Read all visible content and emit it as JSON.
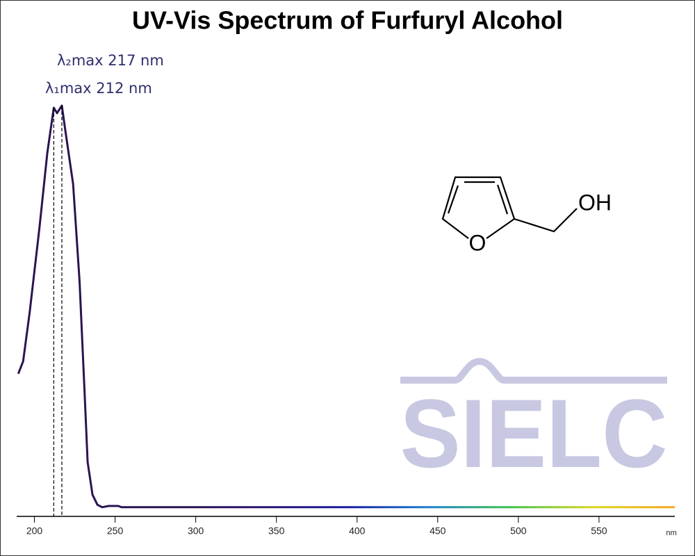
{
  "chart_data": {
    "type": "line",
    "title": "UV-Vis Spectrum of Furfuryl Alcohol",
    "x_label": "nm",
    "x": [
      190,
      193,
      197,
      203,
      208,
      212,
      214,
      217,
      219,
      224,
      228,
      231,
      233,
      236,
      239,
      242,
      246,
      252,
      254,
      300,
      400,
      500,
      597
    ],
    "series": [
      {
        "values": [
          0.342,
          0.372,
          0.488,
          0.688,
          0.872,
          0.98,
          0.967,
          0.985,
          0.93,
          0.797,
          0.563,
          0.305,
          0.13,
          0.052,
          0.028,
          0.022,
          0.025,
          0.025,
          0.022,
          0.022,
          0.022,
          0.022,
          0.022
        ],
        "color": "#2a1450",
        "gradient": [
          "#2a1450",
          "#2a1450",
          "#2a1450",
          "#2a1470",
          "#1a1aa0",
          "#1b7fd0",
          "#3cc34a",
          "#d8d820",
          "#f5a623"
        ]
      }
    ],
    "xlim": [
      189,
      597
    ],
    "xticks": [
      200,
      250,
      300,
      350,
      400,
      450,
      500,
      550
    ],
    "ylim": [
      0,
      1
    ],
    "annotations": [
      {
        "text": "λ₁max  212 nm",
        "x": 212
      },
      {
        "text": "λ₂max  217 nm",
        "x": 217
      }
    ],
    "structure_labels": [
      "O",
      "OH"
    ],
    "watermark": "SIELC"
  }
}
